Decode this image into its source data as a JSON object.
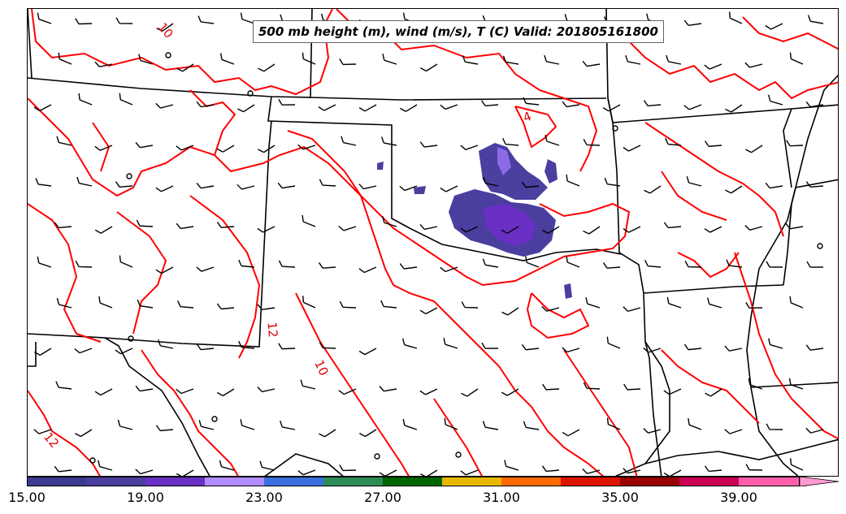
{
  "title": "500 mb height (m), wind (m/s), T (C) Valid: 201805161800",
  "contour_color": "#ff0000",
  "contour_labels": [
    "10",
    "4",
    "12",
    "10",
    "12"
  ],
  "colorbar": {
    "colors": [
      "#3b3b8f",
      "#4a3f9e",
      "#6a2fc4",
      "#b08cff",
      "#3b6fe0",
      "#2e8b57",
      "#006400",
      "#e6b800",
      "#ff6a00",
      "#dd1500",
      "#990000",
      "#cc0055",
      "#ff5faa"
    ],
    "tick_labels": [
      "15.00",
      "19.00",
      "23.00",
      "27.00",
      "31.00",
      "35.00",
      "39.00"
    ]
  }
}
